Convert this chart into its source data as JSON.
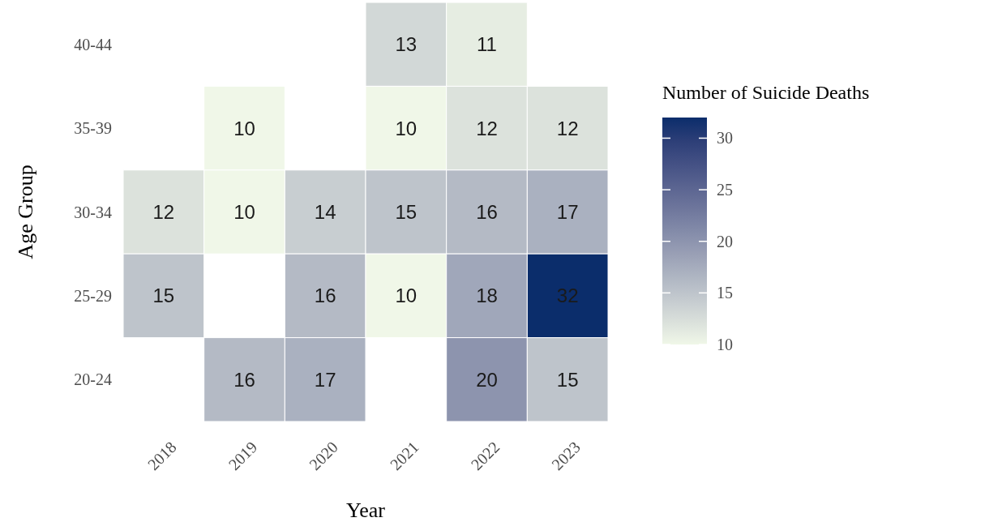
{
  "chart_data": {
    "type": "heatmap",
    "xlabel": "Year",
    "ylabel": "Age Group",
    "clabel": "Number of Suicide Deaths",
    "categories": [
      "2018",
      "2019",
      "2020",
      "2021",
      "2022",
      "2023"
    ],
    "y_categories": [
      "40-44",
      "35-39",
      "30-34",
      "25-29",
      "20-24"
    ],
    "cells": [
      [
        null,
        null,
        null,
        13,
        11,
        null
      ],
      [
        null,
        10,
        null,
        10,
        12,
        12
      ],
      [
        12,
        10,
        14,
        15,
        16,
        17
      ],
      [
        15,
        null,
        16,
        10,
        18,
        32
      ],
      [
        null,
        16,
        17,
        null,
        20,
        15
      ]
    ],
    "data_labels": true,
    "clim": [
      10,
      32
    ],
    "cticks": [
      10,
      15,
      20,
      25,
      30
    ],
    "colors": [
      "#f0f7e8",
      "#0b2d6b"
    ]
  }
}
